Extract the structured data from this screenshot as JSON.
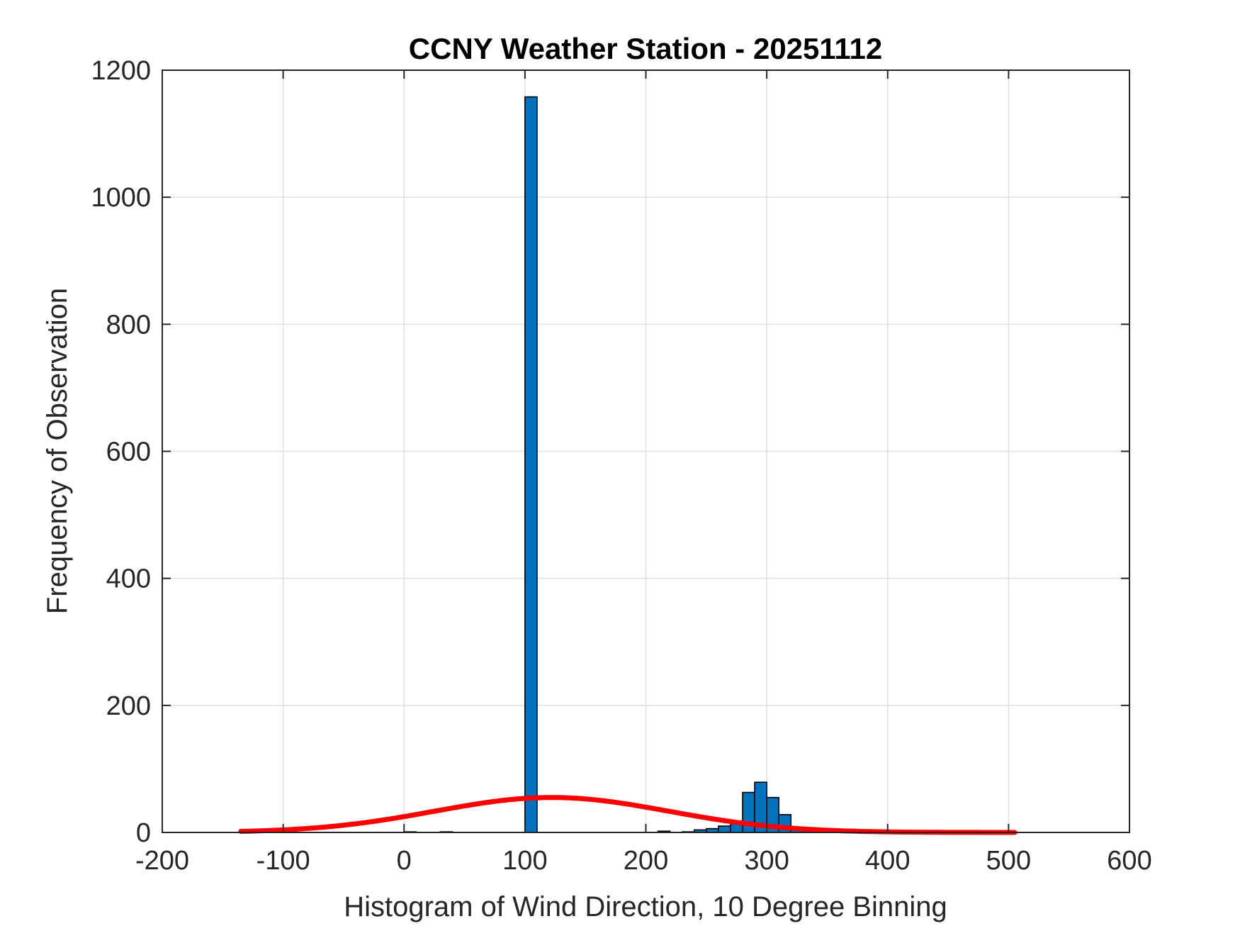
{
  "chart_data": {
    "type": "bar",
    "title": "CCNY Weather Station - 20251112",
    "xlabel": "Histogram of Wind Direction, 10 Degree Binning",
    "ylabel": "Frequency of Observation",
    "xlim": [
      -200,
      600
    ],
    "ylim": [
      0,
      1200
    ],
    "xticks": [
      -200,
      -100,
      0,
      100,
      200,
      300,
      400,
      500,
      600
    ],
    "yticks": [
      0,
      200,
      400,
      600,
      800,
      1000,
      1200
    ],
    "grid": true,
    "bin_width": 10,
    "bins": [
      {
        "x0": 0,
        "x1": 10,
        "count": 1
      },
      {
        "x0": 30,
        "x1": 40,
        "count": 1
      },
      {
        "x0": 100,
        "x1": 110,
        "count": 1158
      },
      {
        "x0": 210,
        "x1": 220,
        "count": 2
      },
      {
        "x0": 230,
        "x1": 240,
        "count": 1
      },
      {
        "x0": 240,
        "x1": 250,
        "count": 4
      },
      {
        "x0": 250,
        "x1": 260,
        "count": 6
      },
      {
        "x0": 260,
        "x1": 270,
        "count": 10
      },
      {
        "x0": 270,
        "x1": 280,
        "count": 18
      },
      {
        "x0": 280,
        "x1": 290,
        "count": 63
      },
      {
        "x0": 290,
        "x1": 300,
        "count": 79
      },
      {
        "x0": 300,
        "x1": 310,
        "count": 55
      },
      {
        "x0": 310,
        "x1": 320,
        "count": 28
      },
      {
        "x0": 320,
        "x1": 330,
        "count": 5
      },
      {
        "x0": 330,
        "x1": 340,
        "count": 3
      },
      {
        "x0": 340,
        "x1": 350,
        "count": 3
      }
    ],
    "fit_curve": {
      "type": "normal",
      "mean": 122,
      "sigma": 97,
      "peak": 55,
      "x_range": [
        -135,
        505
      ],
      "color": "#ff0000"
    },
    "bar_color": "#0072bd"
  }
}
